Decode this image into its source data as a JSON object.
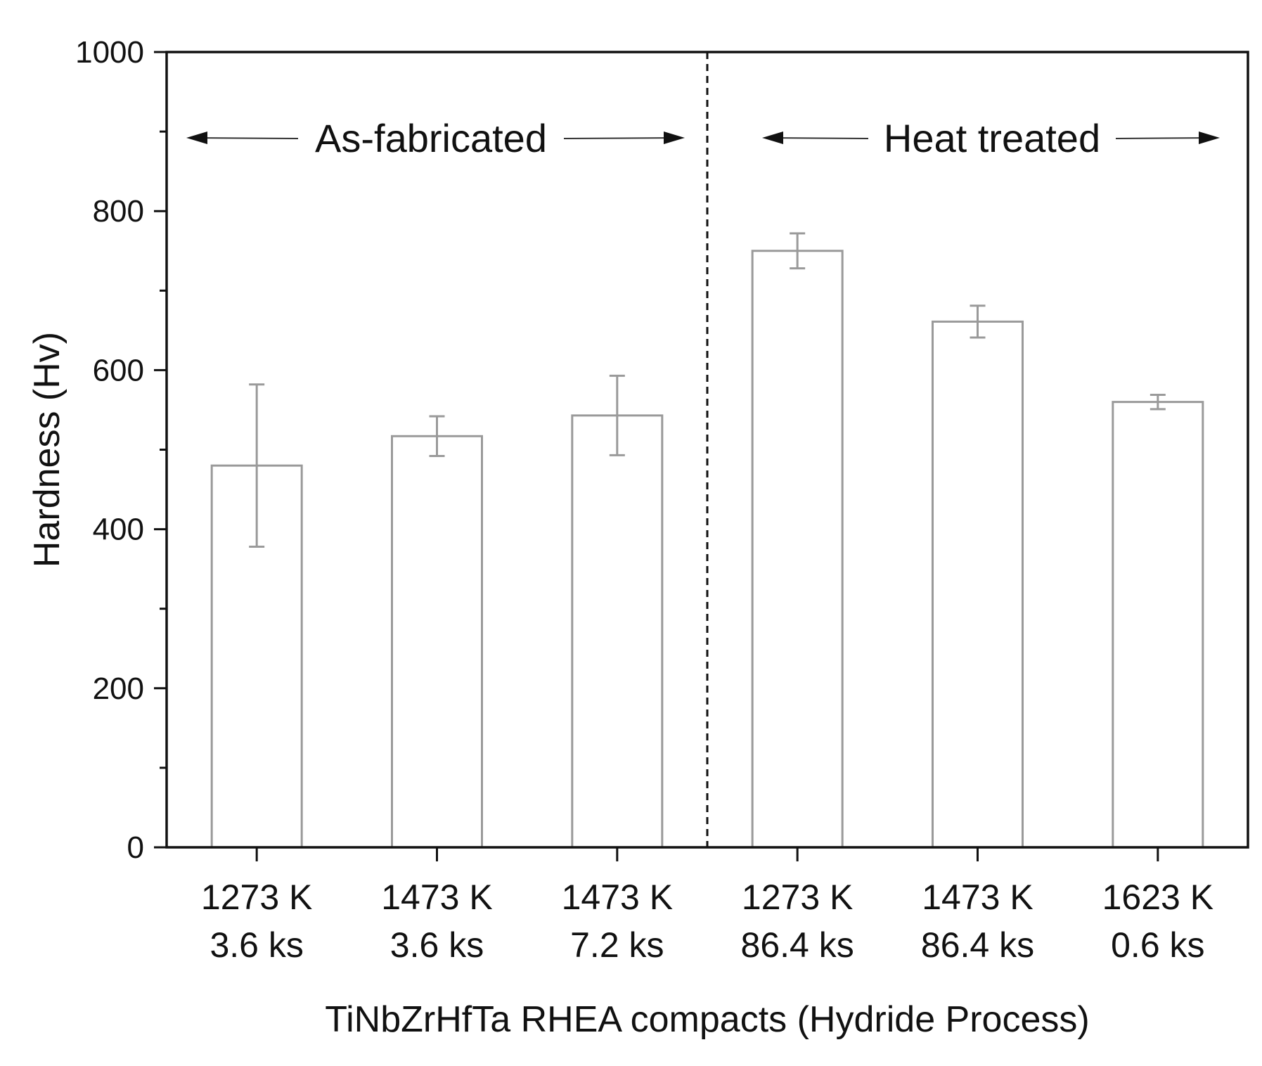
{
  "chart_data": {
    "type": "bar",
    "title": "",
    "xlabel": "TiNbZrHfTa RHEA compacts (Hydride Process)",
    "ylabel": "Hardness (Hv)",
    "ylim": [
      0,
      1000
    ],
    "yticks": [
      0,
      200,
      400,
      600,
      800,
      1000
    ],
    "categories": [
      [
        "1273 K",
        "3.6 ks"
      ],
      [
        "1473 K",
        "3.6 ks"
      ],
      [
        "1473 K",
        "7.2 ks"
      ],
      [
        "1273 K",
        "86.4 ks"
      ],
      [
        "1473 K",
        "86.4 ks"
      ],
      [
        "1623 K",
        "0.6 ks"
      ]
    ],
    "values": [
      480,
      517,
      543,
      750,
      661,
      560
    ],
    "errors": [
      102,
      25,
      50,
      22,
      20,
      9
    ],
    "bar_color": "#ffffff",
    "bar_edge_color": "#9a9a9a",
    "divider_after_index": 2,
    "regions": [
      {
        "label": "As-fabricated",
        "categories": [
          0,
          1,
          2
        ]
      },
      {
        "label": "Heat treated",
        "categories": [
          3,
          4,
          5
        ]
      }
    ]
  }
}
